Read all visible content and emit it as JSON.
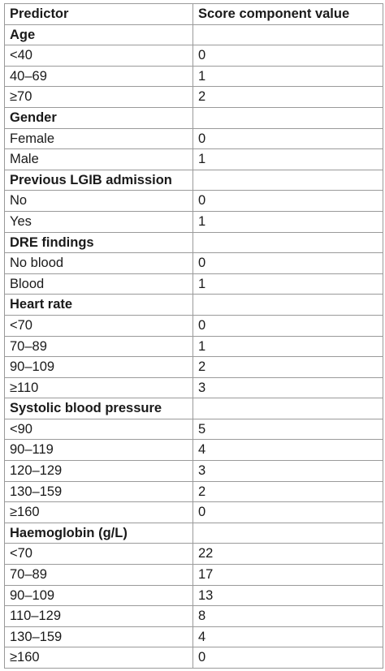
{
  "table": {
    "headers": [
      "Predictor",
      "Score component value"
    ],
    "sections": [
      {
        "title": "Age",
        "rows": [
          [
            "<40",
            "0"
          ],
          [
            "40–69",
            "1"
          ],
          [
            "≥70",
            "2"
          ]
        ]
      },
      {
        "title": "Gender",
        "rows": [
          [
            "Female",
            "0"
          ],
          [
            "Male",
            "1"
          ]
        ]
      },
      {
        "title": "Previous LGIB admission",
        "rows": [
          [
            "No",
            "0"
          ],
          [
            "Yes",
            "1"
          ]
        ]
      },
      {
        "title": "DRE findings",
        "rows": [
          [
            "No blood",
            "0"
          ],
          [
            "Blood",
            "1"
          ]
        ]
      },
      {
        "title": "Heart rate",
        "rows": [
          [
            "<70",
            "0"
          ],
          [
            "70–89",
            "1"
          ],
          [
            "90–109",
            "2"
          ],
          [
            "≥110",
            "3"
          ]
        ]
      },
      {
        "title": "Systolic blood pressure",
        "rows": [
          [
            "<90",
            "5"
          ],
          [
            "90–119",
            "4"
          ],
          [
            "120–129",
            "3"
          ],
          [
            "130–159",
            "2"
          ],
          [
            "≥160",
            "0"
          ]
        ]
      },
      {
        "title": "Haemoglobin (g/L)",
        "rows": [
          [
            "<70",
            "22"
          ],
          [
            "70–89",
            "17"
          ],
          [
            "90–109",
            "13"
          ],
          [
            "110–129",
            "8"
          ],
          [
            "130–159",
            "4"
          ],
          [
            "≥160",
            "0"
          ]
        ]
      }
    ]
  }
}
